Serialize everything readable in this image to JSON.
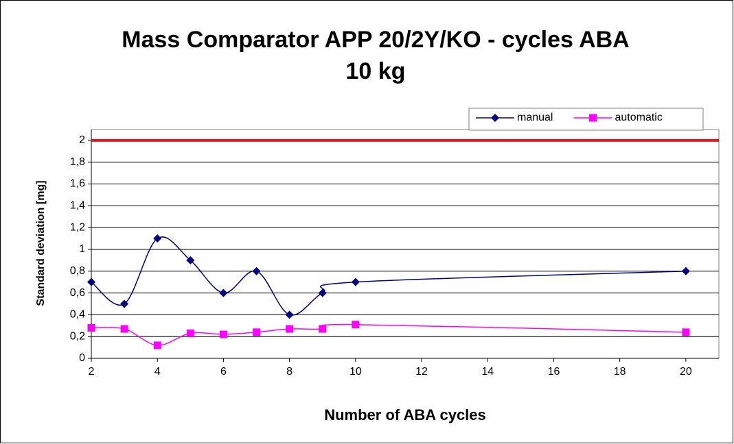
{
  "chart_data": {
    "type": "line",
    "title": "Mass Comparator APP 20/2Y/KO - cycles ABA",
    "subtitle": "10 kg",
    "x_label": "Number of ABA cycles",
    "y_label": "Standard deviation [mg]",
    "x": [
      2,
      3,
      4,
      5,
      6,
      7,
      8,
      9,
      10,
      20
    ],
    "series": [
      {
        "name": "manual",
        "color": "#000080",
        "marker": "diamond",
        "values": [
          0.7,
          0.5,
          1.1,
          0.9,
          0.6,
          0.8,
          0.4,
          0.6,
          0.7,
          0.8
        ]
      },
      {
        "name": "automatic",
        "color": "#ff00ff",
        "marker": "square",
        "values": [
          0.28,
          0.27,
          0.12,
          0.23,
          0.22,
          0.24,
          0.27,
          0.27,
          0.31,
          0.24
        ]
      }
    ],
    "reference_line": {
      "value": 2,
      "color": "#e31a1c"
    },
    "xlim": [
      2,
      21
    ],
    "xticks": [
      2,
      4,
      6,
      8,
      10,
      12,
      14,
      16,
      18,
      20
    ],
    "ylim": [
      0,
      2.1
    ],
    "yticks": [
      0,
      {
        "value": 0.2,
        "label": "0,2"
      },
      {
        "value": 0.4,
        "label": "0,4"
      },
      {
        "value": 0.6,
        "label": "0,6"
      },
      {
        "value": 0.8,
        "label": "0,8"
      },
      1,
      {
        "value": 1.2,
        "label": "1,2"
      },
      {
        "value": 1.4,
        "label": "1,4"
      },
      {
        "value": 1.6,
        "label": "1,6"
      },
      {
        "value": 1.8,
        "label": "1,8"
      },
      2
    ],
    "grid": true,
    "smooth": true,
    "legend": "top-right"
  }
}
